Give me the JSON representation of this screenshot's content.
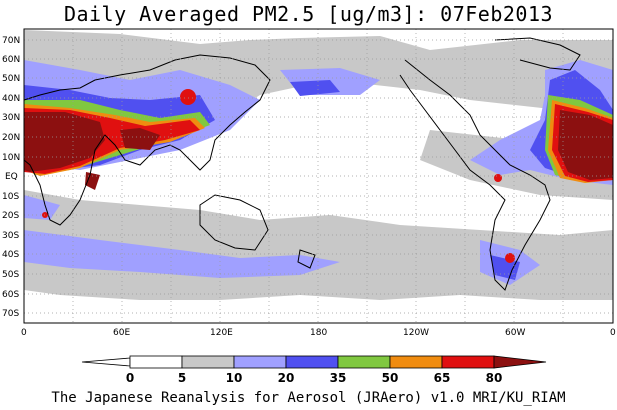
{
  "title": "Daily Averaged PM2.5 [ug/m3]: 07Feb2013",
  "footer": "The Japanese Reanalysis for Aerosol (JRAero) v1.0 MRI/KU_RIAM",
  "lat_labels": [
    "70N",
    "60N",
    "50N",
    "40N",
    "30N",
    "20N",
    "10N",
    "EQ",
    "10S",
    "20S",
    "30S",
    "40S",
    "50S",
    "60S",
    "70S"
  ],
  "lon_labels": [
    "0",
    "60E",
    "120E",
    "180",
    "120W",
    "60W",
    "0"
  ],
  "colorbar": {
    "levels": [
      "0",
      "5",
      "10",
      "20",
      "35",
      "50",
      "65",
      "80"
    ],
    "colors": [
      "#ffffff",
      "#c8c8c8",
      "#a0a0ff",
      "#5050f0",
      "#80c840",
      "#f08c10",
      "#e01010",
      "#8c1010"
    ]
  },
  "legend_colors": {
    "land_outline": "#000000",
    "grid": "#999999"
  }
}
